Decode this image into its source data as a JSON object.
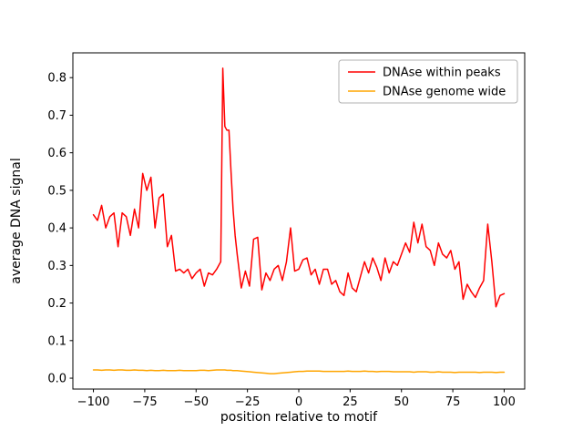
{
  "chart_data": {
    "type": "line",
    "title": "",
    "xlabel": "position relative to motif",
    "ylabel": "average DNA signal",
    "xlim": [
      -110,
      110
    ],
    "ylim": [
      -0.029,
      0.866
    ],
    "xticks": [
      -100,
      -75,
      -50,
      -25,
      0,
      25,
      50,
      75,
      100
    ],
    "yticks": [
      0.0,
      0.1,
      0.2,
      0.3,
      0.4,
      0.5,
      0.6,
      0.7,
      0.8
    ],
    "grid": false,
    "legend_position": "upper right",
    "x": [
      -100,
      -98,
      -96,
      -94,
      -92,
      -90,
      -88,
      -86,
      -84,
      -82,
      -80,
      -78,
      -76,
      -74,
      -72,
      -70,
      -68,
      -66,
      -64,
      -62,
      -60,
      -58,
      -56,
      -54,
      -52,
      -50,
      -48,
      -46,
      -44,
      -42,
      -40,
      -39,
      -38,
      -37,
      -36,
      -35,
      -34,
      -33,
      -32,
      -31,
      -30,
      -28,
      -26,
      -24,
      -22,
      -20,
      -18,
      -16,
      -14,
      -12,
      -10,
      -8,
      -6,
      -4,
      -2,
      0,
      2,
      4,
      6,
      8,
      10,
      12,
      14,
      16,
      18,
      20,
      22,
      24,
      26,
      28,
      30,
      32,
      34,
      36,
      38,
      40,
      42,
      44,
      46,
      48,
      50,
      52,
      54,
      56,
      58,
      60,
      62,
      64,
      66,
      68,
      70,
      72,
      74,
      76,
      78,
      80,
      82,
      84,
      86,
      88,
      90,
      92,
      94,
      96,
      98,
      100
    ],
    "series": [
      {
        "name": "DNAse within peaks",
        "color": "#ff0000",
        "values": [
          0.435,
          0.42,
          0.46,
          0.4,
          0.43,
          0.44,
          0.35,
          0.44,
          0.43,
          0.38,
          0.45,
          0.4,
          0.545,
          0.5,
          0.535,
          0.4,
          0.48,
          0.49,
          0.35,
          0.38,
          0.285,
          0.29,
          0.28,
          0.29,
          0.265,
          0.28,
          0.29,
          0.245,
          0.28,
          0.275,
          0.29,
          0.3,
          0.31,
          0.825,
          0.67,
          0.66,
          0.66,
          0.55,
          0.45,
          0.38,
          0.33,
          0.24,
          0.285,
          0.245,
          0.37,
          0.375,
          0.235,
          0.28,
          0.26,
          0.29,
          0.3,
          0.26,
          0.31,
          0.4,
          0.285,
          0.29,
          0.315,
          0.32,
          0.275,
          0.29,
          0.25,
          0.29,
          0.29,
          0.25,
          0.26,
          0.23,
          0.22,
          0.28,
          0.24,
          0.23,
          0.27,
          0.31,
          0.28,
          0.32,
          0.295,
          0.26,
          0.32,
          0.28,
          0.31,
          0.3,
          0.33,
          0.36,
          0.335,
          0.415,
          0.36,
          0.41,
          0.35,
          0.34,
          0.3,
          0.36,
          0.33,
          0.32,
          0.34,
          0.29,
          0.31,
          0.21,
          0.25,
          0.23,
          0.215,
          0.24,
          0.26,
          0.41,
          0.31,
          0.19,
          0.22,
          0.225
        ]
      },
      {
        "name": "DNAse genome wide",
        "color": "#ffa500",
        "values": [
          0.022,
          0.022,
          0.021,
          0.022,
          0.022,
          0.021,
          0.022,
          0.022,
          0.021,
          0.021,
          0.022,
          0.021,
          0.021,
          0.02,
          0.021,
          0.02,
          0.02,
          0.021,
          0.02,
          0.02,
          0.02,
          0.021,
          0.02,
          0.02,
          0.02,
          0.02,
          0.021,
          0.021,
          0.02,
          0.021,
          0.022,
          0.022,
          0.022,
          0.022,
          0.022,
          0.021,
          0.021,
          0.021,
          0.02,
          0.02,
          0.02,
          0.019,
          0.018,
          0.017,
          0.016,
          0.015,
          0.014,
          0.013,
          0.012,
          0.012,
          0.013,
          0.014,
          0.015,
          0.016,
          0.017,
          0.018,
          0.018,
          0.019,
          0.019,
          0.019,
          0.019,
          0.018,
          0.018,
          0.018,
          0.018,
          0.018,
          0.018,
          0.019,
          0.018,
          0.018,
          0.018,
          0.019,
          0.018,
          0.018,
          0.017,
          0.018,
          0.018,
          0.018,
          0.017,
          0.017,
          0.017,
          0.017,
          0.017,
          0.016,
          0.017,
          0.017,
          0.017,
          0.016,
          0.016,
          0.017,
          0.016,
          0.016,
          0.016,
          0.015,
          0.016,
          0.016,
          0.016,
          0.016,
          0.016,
          0.015,
          0.016,
          0.016,
          0.016,
          0.015,
          0.016,
          0.016
        ]
      }
    ]
  }
}
